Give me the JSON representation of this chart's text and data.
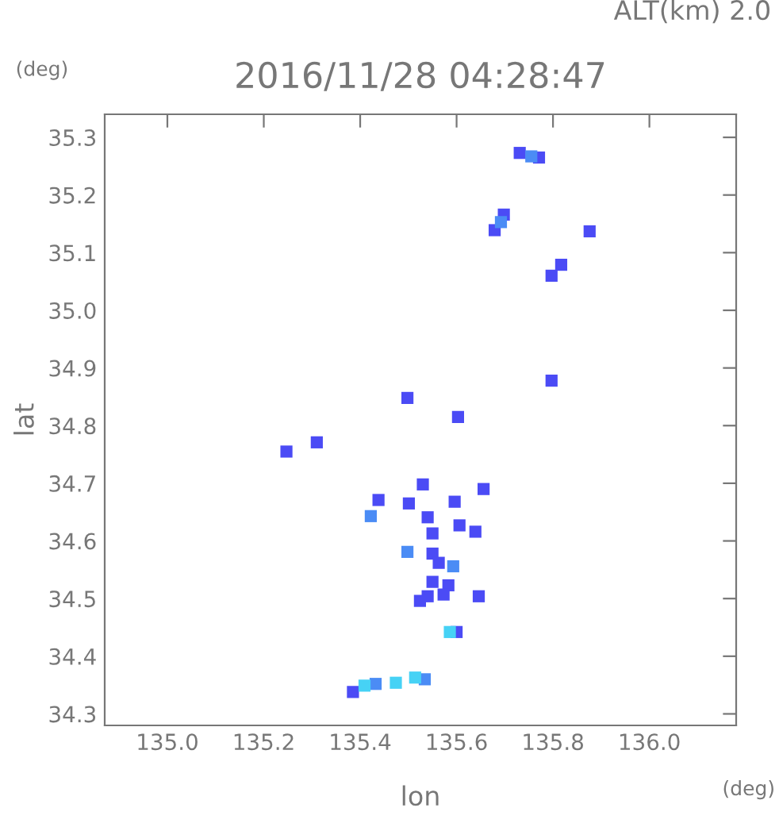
{
  "chart_data": {
    "type": "scatter",
    "title": "2016/11/28 04:28:47",
    "xlabel": "lon",
    "ylabel": "lat",
    "annotations": [
      "ALT(km) 2.0",
      "(deg)",
      "(deg)"
    ],
    "marker": "square",
    "grid": false,
    "legend": false,
    "xlim": [
      134.87,
      136.18
    ],
    "ylim": [
      34.28,
      35.34
    ],
    "xticks": [
      {
        "value": 135,
        "label": "135.0"
      },
      135.2,
      135.4,
      135.6,
      135.8,
      {
        "value": 136,
        "label": "136.0"
      }
    ],
    "yticks": [
      34.3,
      34.4,
      34.5,
      34.6,
      34.7,
      34.8,
      34.9,
      {
        "value": 35,
        "label": "35.0"
      },
      35.1,
      35.2,
      35.3
    ],
    "series": [
      {
        "color": "#4b4bf5",
        "x": [
          135.731,
          135.771,
          135.679,
          135.698,
          135.876,
          135.817,
          135.797,
          135.797,
          135.247,
          135.31,
          135.498,
          135.603,
          135.53,
          135.54,
          135.438,
          135.501,
          135.596,
          135.606,
          135.656,
          135.639,
          135.55,
          135.55,
          135.563,
          135.55,
          135.583,
          135.54,
          135.573,
          135.524,
          135.646,
          135.6,
          135.385
        ],
        "values": [
          35.273,
          35.265,
          35.139,
          35.166,
          35.137,
          35.079,
          35.06,
          34.878,
          34.755,
          34.771,
          34.848,
          34.815,
          34.698,
          34.641,
          34.671,
          34.665,
          34.668,
          34.627,
          34.69,
          34.616,
          34.613,
          34.578,
          34.562,
          34.529,
          34.523,
          34.504,
          34.507,
          34.496,
          34.504,
          34.442,
          34.338
        ]
      },
      {
        "color": "#4b8cf5",
        "x": [
          135.755,
          135.692,
          135.422,
          135.498,
          135.593,
          135.432,
          135.534
        ],
        "values": [
          35.267,
          35.153,
          34.643,
          34.581,
          34.556,
          34.352,
          34.36
        ]
      },
      {
        "color": "#46d2f5",
        "x": [
          135.409,
          135.474,
          135.514,
          135.586
        ],
        "values": [
          34.349,
          34.354,
          34.363,
          34.442
        ]
      }
    ]
  }
}
